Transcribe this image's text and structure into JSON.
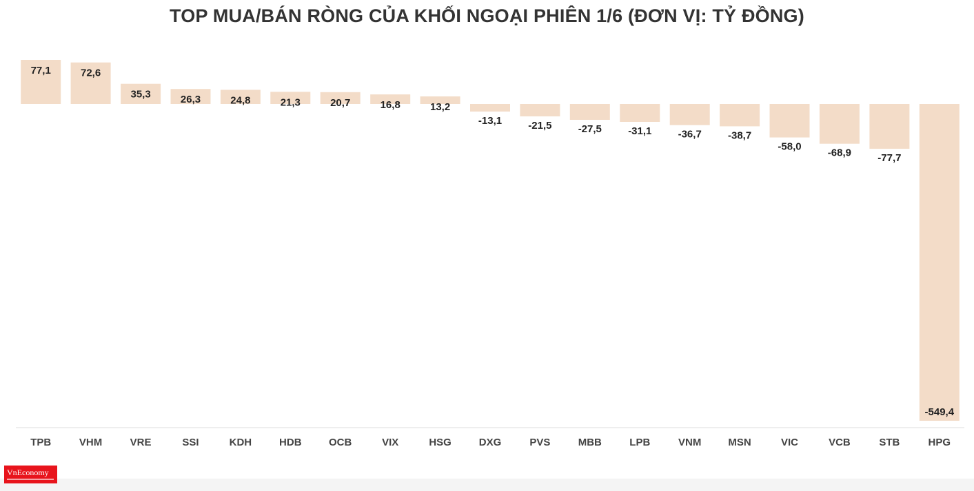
{
  "colors": {
    "bar": "#f3dcc8",
    "axis": "#dddddd",
    "title": "#333333"
  },
  "logo": {
    "text": "VnEconomy"
  },
  "chart_data": {
    "type": "bar",
    "title": "TOP MUA/BÁN RÒNG CỦA KHỐI NGOẠI PHIÊN 1/6 (ĐƠN VỊ: TỶ ĐỒNG)",
    "xlabel": "",
    "ylabel": "",
    "categories": [
      "TPB",
      "VHM",
      "VRE",
      "SSI",
      "KDH",
      "HDB",
      "OCB",
      "VIX",
      "HSG",
      "DXG",
      "PVS",
      "MBB",
      "LPB",
      "VNM",
      "MSN",
      "VIC",
      "VCB",
      "STB",
      "HPG"
    ],
    "values": [
      77.1,
      72.6,
      35.3,
      26.3,
      24.8,
      21.3,
      20.7,
      16.8,
      13.2,
      -13.1,
      -21.5,
      -27.5,
      -31.1,
      -36.7,
      -38.7,
      -58.0,
      -68.9,
      -77.7,
      -549.4
    ],
    "value_labels": [
      "77,1",
      "72,6",
      "35,3",
      "26,3",
      "24,8",
      "21,3",
      "20,7",
      "16,8",
      "13,2",
      "-13,1",
      "-21,5",
      "-27,5",
      "-31,1",
      "-36,7",
      "-38,7",
      "-58,0",
      "-68,9",
      "-77,7",
      "-549,4"
    ],
    "ylim": [
      -549.4,
      77.1
    ],
    "grid": false,
    "legend": "none"
  }
}
